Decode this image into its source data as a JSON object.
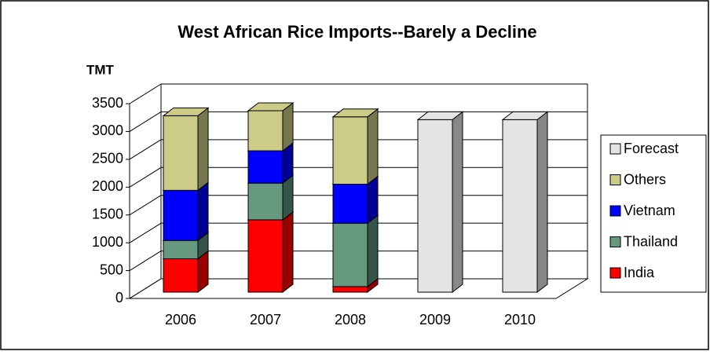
{
  "chart_data": {
    "type": "bar3d-stacked",
    "title": "West African Rice Imports--Barely a Decline",
    "y_label": "TMT",
    "categories": [
      "2006",
      "2007",
      "2008",
      "2009",
      "2010"
    ],
    "series": [
      {
        "name": "India",
        "color": "#ff0000",
        "side": "#990000",
        "values": [
          600,
          1300,
          100,
          null,
          null
        ]
      },
      {
        "name": "Thailand",
        "color": "#669980",
        "side": "#33554a",
        "values": [
          330,
          660,
          1140,
          null,
          null
        ]
      },
      {
        "name": "Vietnam",
        "color": "#0000ff",
        "side": "#000099",
        "values": [
          900,
          580,
          700,
          null,
          null
        ]
      },
      {
        "name": "Others",
        "color": "#cccc88",
        "side": "#77774f",
        "values": [
          1340,
          720,
          1210,
          null,
          null
        ]
      },
      {
        "name": "Forecast",
        "color": "#e4e4e4",
        "side": "#888888",
        "values": [
          null,
          null,
          null,
          3100,
          3100
        ]
      }
    ],
    "ylim": [
      0,
      3500
    ],
    "yticks": [
      0,
      500,
      1000,
      1500,
      2000,
      2500,
      3000,
      3500
    ],
    "grid": true,
    "legend": "right"
  }
}
